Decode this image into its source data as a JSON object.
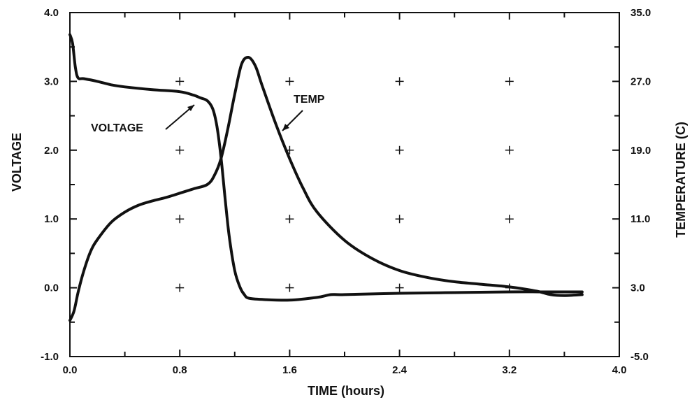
{
  "chart_data": {
    "type": "line",
    "xlabel": "TIME (hours)",
    "ylabel_left": "VOLTAGE",
    "ylabel_right": "TEMPERATURE (C)",
    "xlim": [
      0.0,
      4.0
    ],
    "ylim_left": [
      -1.0,
      4.0
    ],
    "ylim_right": [
      -5.0,
      35.0
    ],
    "x_ticks": [
      "0.0",
      "0.8",
      "1.6",
      "2.4",
      "3.2",
      "4.0"
    ],
    "y_left_ticks": [
      "-1.0",
      "0.0",
      "1.0",
      "2.0",
      "3.0",
      "4.0"
    ],
    "y_right_ticks": [
      "-5.0",
      "3.0",
      "11.0",
      "19.0",
      "27.0",
      "35.0"
    ],
    "grid": "plus-markers",
    "series": [
      {
        "name": "VOLTAGE",
        "axis": "left",
        "x": [
          0.0,
          0.02,
          0.04,
          0.06,
          0.1,
          0.2,
          0.3,
          0.4,
          0.6,
          0.8,
          0.9,
          0.95,
          1.0,
          1.04,
          1.07,
          1.1,
          1.13,
          1.16,
          1.2,
          1.24,
          1.27,
          1.3,
          1.4,
          1.6,
          1.8,
          1.9,
          2.0,
          2.4,
          2.8,
          3.2,
          3.5,
          3.73
        ],
        "values": [
          3.68,
          3.55,
          3.2,
          3.05,
          3.04,
          3.0,
          2.95,
          2.92,
          2.88,
          2.85,
          2.8,
          2.76,
          2.72,
          2.6,
          2.35,
          1.9,
          1.3,
          0.75,
          0.25,
          0.0,
          -0.1,
          -0.15,
          -0.17,
          -0.18,
          -0.14,
          -0.1,
          -0.1,
          -0.08,
          -0.07,
          -0.06,
          -0.06,
          -0.06
        ]
      },
      {
        "name": "TEMP",
        "axis": "right",
        "x": [
          0.0,
          0.03,
          0.06,
          0.1,
          0.15,
          0.2,
          0.3,
          0.4,
          0.5,
          0.6,
          0.7,
          0.8,
          0.9,
          1.0,
          1.05,
          1.1,
          1.15,
          1.2,
          1.25,
          1.3,
          1.35,
          1.4,
          1.5,
          1.6,
          1.7,
          1.8,
          2.0,
          2.2,
          2.4,
          2.6,
          2.8,
          3.0,
          3.2,
          3.4,
          3.5,
          3.6,
          3.73
        ],
        "values": [
          -0.8,
          0.3,
          2.5,
          4.9,
          7.2,
          8.6,
          10.6,
          11.8,
          12.6,
          13.1,
          13.5,
          14.0,
          14.5,
          15.0,
          16.0,
          18.0,
          21.5,
          25.5,
          29.0,
          29.8,
          28.8,
          26.5,
          22.0,
          18.0,
          14.5,
          11.8,
          8.5,
          6.4,
          5.0,
          4.2,
          3.7,
          3.4,
          3.1,
          2.6,
          2.2,
          2.1,
          2.2
        ]
      }
    ],
    "annotations": [
      {
        "text": "VOLTAGE",
        "target_series": "VOLTAGE"
      },
      {
        "text": "TEMP",
        "target_series": "TEMP"
      }
    ]
  }
}
